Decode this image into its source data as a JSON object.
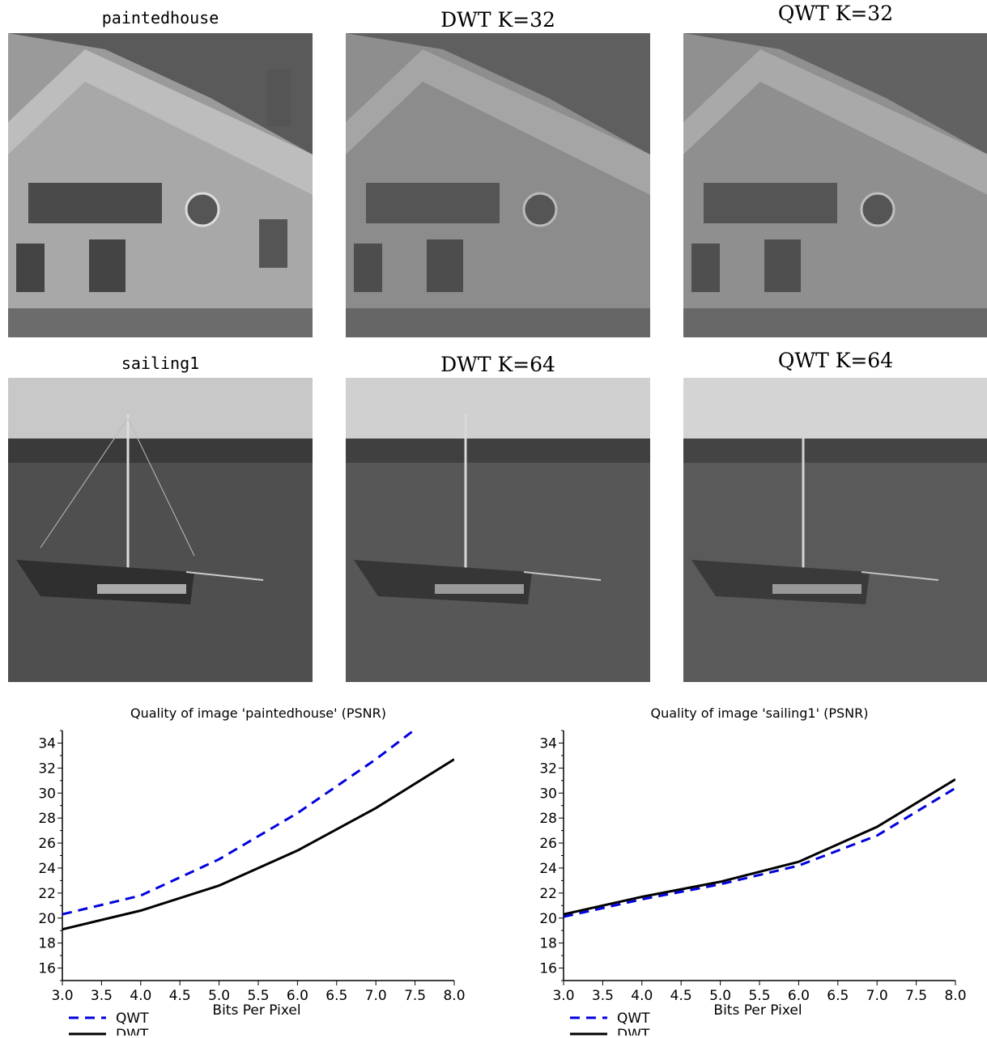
{
  "panels": {
    "row1": {
      "original": "paintedhouse",
      "dwt": "DWT K=32",
      "qwt": "QWT K=32"
    },
    "row2": {
      "original": "sailing1",
      "dwt": "DWT K=64",
      "qwt": "QWT K=64"
    }
  },
  "colors": {
    "qwt": "#0000dd",
    "dwt": "#000000"
  },
  "chart_data": [
    {
      "type": "line",
      "title": "Quality of image 'paintedhouse' (PSNR)",
      "xlabel": "Bits Per Pixel",
      "ylabel": "",
      "xlim": [
        3.0,
        8.0
      ],
      "ylim": [
        15,
        35
      ],
      "xticks": [
        "3.0",
        "3.5",
        "4.0",
        "4.5",
        "5.0",
        "5.5",
        "6.0",
        "6.5",
        "7.0",
        "7.5",
        "8.0"
      ],
      "yticks": [
        "16",
        "18",
        "20",
        "22",
        "24",
        "26",
        "28",
        "30",
        "32",
        "34"
      ],
      "legend_position": "bottom-left",
      "series": [
        {
          "name": "QWT",
          "style": "dashed",
          "x": [
            3.0,
            4.0,
            5.0,
            6.0,
            7.0,
            7.5
          ],
          "y": [
            20.3,
            21.8,
            24.7,
            28.4,
            32.7,
            35.1
          ]
        },
        {
          "name": "DWT",
          "style": "solid",
          "x": [
            3.0,
            4.0,
            5.0,
            6.0,
            7.0,
            8.0
          ],
          "y": [
            19.1,
            20.6,
            22.6,
            25.4,
            28.8,
            32.7
          ]
        }
      ]
    },
    {
      "type": "line",
      "title": "Quality of image 'sailing1' (PSNR)",
      "xlabel": "Bits Per Pixel",
      "ylabel": "",
      "xlim": [
        3.0,
        8.0
      ],
      "ylim": [
        15,
        35
      ],
      "xticks": [
        "3.0",
        "3.5",
        "4.0",
        "4.5",
        "5.0",
        "5.5",
        "6.0",
        "6.5",
        "7.0",
        "7.5",
        "8.0"
      ],
      "yticks": [
        "16",
        "18",
        "20",
        "22",
        "24",
        "26",
        "28",
        "30",
        "32",
        "34"
      ],
      "legend_position": "bottom-left",
      "series": [
        {
          "name": "QWT",
          "style": "dashed",
          "x": [
            3.0,
            4.0,
            5.0,
            6.0,
            7.0,
            8.0
          ],
          "y": [
            20.1,
            21.5,
            22.7,
            24.2,
            26.6,
            30.4
          ]
        },
        {
          "name": "DWT",
          "style": "solid",
          "x": [
            3.0,
            4.0,
            5.0,
            6.0,
            7.0,
            8.0
          ],
          "y": [
            20.3,
            21.7,
            22.9,
            24.5,
            27.3,
            31.1
          ]
        }
      ]
    }
  ]
}
